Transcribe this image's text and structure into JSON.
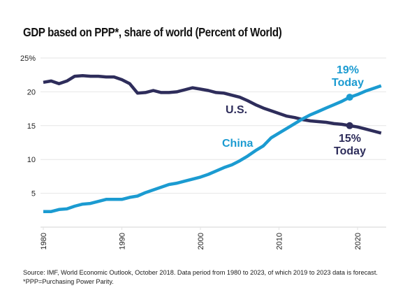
{
  "chart_data": {
    "type": "line",
    "title": "GDP based on PPP*, share of world (Percent of World)",
    "xlabel": "",
    "ylabel": "",
    "x": [
      1980,
      1981,
      1982,
      1983,
      1984,
      1985,
      1986,
      1987,
      1988,
      1989,
      1990,
      1991,
      1992,
      1993,
      1994,
      1995,
      1996,
      1997,
      1998,
      1999,
      2000,
      2001,
      2002,
      2003,
      2004,
      2005,
      2006,
      2007,
      2008,
      2009,
      2010,
      2011,
      2012,
      2013,
      2014,
      2015,
      2016,
      2017,
      2018,
      2019,
      2020,
      2021,
      2022,
      2023
    ],
    "xlim": [
      1980,
      2023.5
    ],
    "ylim": [
      0,
      25
    ],
    "yticks": [
      5,
      10,
      15,
      20,
      25
    ],
    "ytick_labels": [
      "5",
      "10",
      "15",
      "20",
      "25%"
    ],
    "xticks": [
      1980,
      1990,
      2000,
      2010,
      2020
    ],
    "xtick_labels": [
      "1980",
      "1990",
      "2000",
      "2010",
      "2020"
    ],
    "grid": true,
    "series": [
      {
        "name": "U.S.",
        "color": "#2e2d5b",
        "values": [
          21.4,
          21.6,
          21.2,
          21.6,
          22.3,
          22.4,
          22.3,
          22.3,
          22.2,
          22.2,
          21.8,
          21.2,
          19.8,
          19.9,
          20.2,
          19.9,
          19.9,
          20.0,
          20.3,
          20.6,
          20.4,
          20.2,
          19.9,
          19.8,
          19.5,
          19.2,
          18.7,
          18.1,
          17.6,
          17.2,
          16.8,
          16.4,
          16.2,
          15.9,
          15.7,
          15.6,
          15.5,
          15.3,
          15.2,
          15.0,
          14.8,
          14.5,
          14.2,
          13.9
        ]
      },
      {
        "name": "China",
        "color": "#1b9bd1",
        "values": [
          2.3,
          2.3,
          2.6,
          2.7,
          3.1,
          3.4,
          3.5,
          3.8,
          4.1,
          4.1,
          4.1,
          4.4,
          4.6,
          5.1,
          5.5,
          5.9,
          6.3,
          6.5,
          6.8,
          7.1,
          7.4,
          7.8,
          8.3,
          8.8,
          9.2,
          9.8,
          10.5,
          11.3,
          12.0,
          13.2,
          13.9,
          14.6,
          15.3,
          16.0,
          16.6,
          17.1,
          17.6,
          18.1,
          18.6,
          19.2,
          19.6,
          20.1,
          20.5,
          20.9
        ]
      }
    ],
    "annotations": [
      {
        "series": "U.S.",
        "text": "U.S."
      },
      {
        "series": "China",
        "text": "China"
      },
      {
        "series": "China",
        "x": 2019,
        "value_label": "19%",
        "sub_label": "Today"
      },
      {
        "series": "U.S.",
        "x": 2019,
        "value_label": "15%",
        "sub_label": "Today"
      }
    ]
  },
  "footer": {
    "source": "Source: IMF, World Economic Outlook, October 2018. Data period from 1980 to 2023, of which 2019 to 2023 data is forecast.",
    "note": "*PPP=Purchasing Power Parity."
  }
}
